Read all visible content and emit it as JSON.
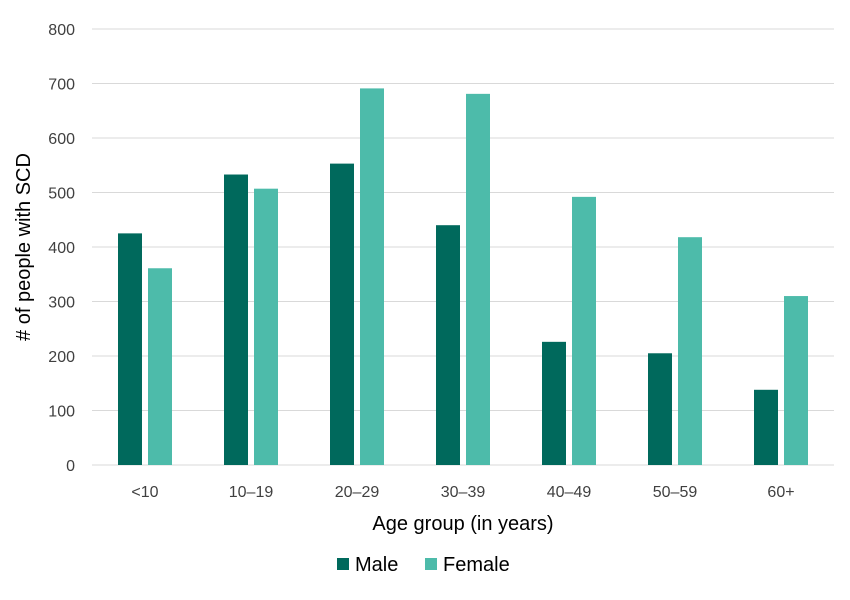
{
  "chart_data": {
    "type": "bar",
    "title": "",
    "xlabel": "Age group (in years)",
    "ylabel": "# of people with SCD",
    "categories": [
      "<10",
      "10–19",
      "20–29",
      "30–39",
      "40–49",
      "50–59",
      "60+"
    ],
    "series": [
      {
        "name": "Male",
        "color": "#00695c",
        "values": [
          425,
          533,
          553,
          440,
          226,
          205,
          138
        ]
      },
      {
        "name": "Female",
        "color": "#4dbbaa",
        "values": [
          361,
          507,
          691,
          681,
          492,
          418,
          310
        ]
      }
    ],
    "ylim": [
      0,
      800
    ],
    "yticks": [
      0,
      100,
      200,
      300,
      400,
      500,
      600,
      700,
      800
    ],
    "grid": true,
    "legend_position": "bottom"
  }
}
